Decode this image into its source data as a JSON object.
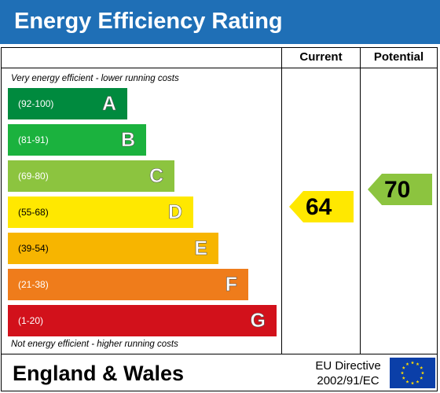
{
  "title": "Energy Efficiency Rating",
  "columns": {
    "current": "Current",
    "potential": "Potential"
  },
  "captions": {
    "top": "Very energy efficient - lower running costs",
    "bottom": "Not energy efficient - higher running costs"
  },
  "footer": {
    "region": "England & Wales",
    "directive_line1": "EU Directive",
    "directive_line2": "2002/91/EC"
  },
  "colors": {
    "title_bar": "#1f6fb6",
    "A": "#008a3e",
    "B": "#1bb23e",
    "C": "#8cc43f",
    "D": "#ffe800",
    "E": "#f7b500",
    "F": "#ef7c1b",
    "G": "#d2111b",
    "eu_blue": "#0b3fa8",
    "eu_star": "#ffdd00"
  },
  "chart_data": {
    "type": "bar",
    "bands": [
      {
        "letter": "A",
        "range": "(92-100)",
        "min": 92,
        "max": 100
      },
      {
        "letter": "B",
        "range": "(81-91)",
        "min": 81,
        "max": 91
      },
      {
        "letter": "C",
        "range": "(69-80)",
        "min": 69,
        "max": 80
      },
      {
        "letter": "D",
        "range": "(55-68)",
        "min": 55,
        "max": 68
      },
      {
        "letter": "E",
        "range": "(39-54)",
        "min": 39,
        "max": 54
      },
      {
        "letter": "F",
        "range": "(21-38)",
        "min": 21,
        "max": 38
      },
      {
        "letter": "G",
        "range": "(1-20)",
        "min": 1,
        "max": 20
      }
    ],
    "current": {
      "value": 64,
      "band": "D"
    },
    "potential": {
      "value": 70,
      "band": "C"
    }
  }
}
